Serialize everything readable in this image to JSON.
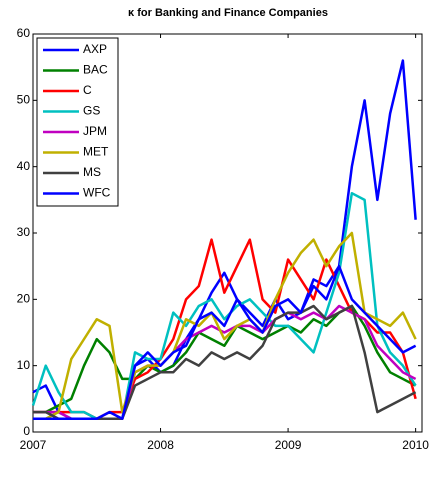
{
  "chart_data": {
    "type": "line",
    "title": "κ for Banking and Finance Companies",
    "x": [
      2007.0,
      2007.1,
      2007.2,
      2007.3,
      2007.4,
      2007.5,
      2007.6,
      2007.7,
      2007.8,
      2007.9,
      2008.0,
      2008.1,
      2008.2,
      2008.3,
      2008.4,
      2008.5,
      2008.6,
      2008.7,
      2008.8,
      2008.9,
      2009.0,
      2009.1,
      2009.2,
      2009.3,
      2009.4,
      2009.5,
      2009.6,
      2009.7,
      2009.8,
      2009.9,
      2010.0
    ],
    "series": [
      {
        "name": "AXP",
        "color": "#0000ff",
        "values": [
          6,
          7,
          3,
          2,
          2,
          2,
          2,
          2,
          10,
          11,
          9,
          10,
          14,
          17,
          21,
          24,
          20,
          18,
          16,
          20,
          17,
          18,
          23,
          22,
          25,
          40,
          50,
          35,
          48,
          56,
          32
        ]
      },
      {
        "name": "BAC",
        "color": "#008000",
        "values": [
          3,
          3,
          4,
          5,
          10,
          14,
          12,
          8,
          8,
          10,
          9,
          10,
          12,
          15,
          14,
          13,
          16,
          15,
          14,
          15,
          16,
          15,
          17,
          16,
          18,
          19,
          16,
          12,
          9,
          8,
          7
        ]
      },
      {
        "name": "C",
        "color": "#ff0000",
        "values": [
          3,
          3,
          3,
          3,
          3,
          2,
          3,
          3,
          8,
          9,
          11,
          14,
          20,
          22,
          29,
          21,
          25,
          29,
          20,
          18,
          26,
          23,
          20,
          26,
          22,
          18,
          17,
          15,
          15,
          12,
          5
        ]
      },
      {
        "name": "GS",
        "color": "#00c0c0",
        "values": [
          4,
          10,
          6,
          3,
          3,
          2,
          2,
          2,
          12,
          11,
          11,
          18,
          16,
          19,
          20,
          17,
          19,
          20,
          18,
          16,
          16,
          14,
          12,
          18,
          24,
          36,
          35,
          16,
          12,
          10,
          7
        ]
      },
      {
        "name": "JPM",
        "color": "#c000c0",
        "values": [
          3,
          3,
          3,
          2,
          2,
          2,
          2,
          2,
          9,
          10,
          10,
          12,
          14,
          15,
          16,
          15,
          16,
          16,
          15,
          17,
          18,
          17,
          18,
          17,
          19,
          18,
          17,
          13,
          11,
          9,
          8
        ]
      },
      {
        "name": "MET",
        "color": "#c0b000",
        "values": [
          2,
          2,
          3,
          11,
          14,
          17,
          16,
          3,
          9,
          10,
          10,
          12,
          17,
          16,
          18,
          14,
          16,
          17,
          15,
          20,
          24,
          27,
          29,
          25,
          28,
          30,
          18,
          17,
          16,
          18,
          14
        ]
      },
      {
        "name": "MS",
        "color": "#404040",
        "values": [
          3,
          3,
          2,
          2,
          2,
          2,
          2,
          2,
          7,
          8,
          9,
          9,
          11,
          10,
          12,
          11,
          12,
          11,
          13,
          17,
          18,
          18,
          19,
          17,
          18,
          19,
          12,
          3,
          4,
          5,
          6
        ]
      },
      {
        "name": "WFC",
        "color": "#0000ff",
        "values": [
          2,
          2,
          2,
          2,
          2,
          2,
          3,
          2,
          10,
          12,
          10,
          12,
          13,
          17,
          18,
          16,
          20,
          17,
          15,
          19,
          20,
          18,
          22,
          20,
          25,
          20,
          18,
          16,
          14,
          12,
          13
        ]
      }
    ],
    "xlim": [
      2007,
      2010.05
    ],
    "xticks": [
      2007,
      2008,
      2009,
      2010
    ],
    "ylim": [
      0,
      60
    ],
    "yticks": [
      0,
      10,
      20,
      30,
      40,
      50,
      60
    ],
    "legend": "upper-left"
  }
}
